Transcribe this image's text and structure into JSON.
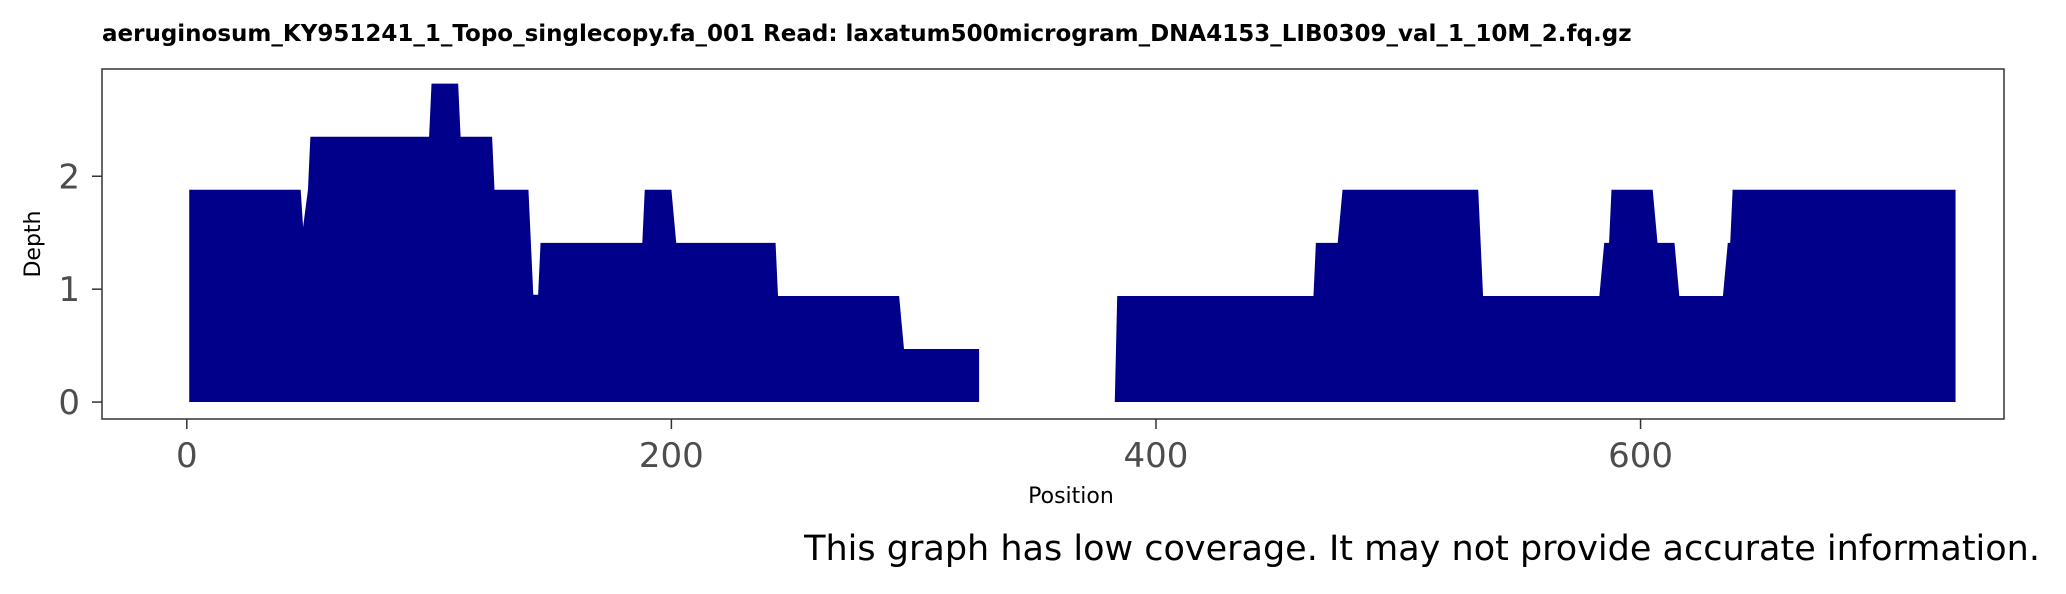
{
  "colors": {
    "fill": "#00008B",
    "panel_border": "#333333",
    "tick_mark": "#333333",
    "tick_label": "#4D4D4D",
    "background": "#FFFFFF"
  },
  "chart_data": {
    "type": "area",
    "title": "aeruginosum_KY951241_1_Topo_singlecopy.fa_001   Read: laxatum500microgram_DNA4153_LIB0309_val_1_10M_2.fq.gz",
    "xlabel": "Position",
    "ylabel": "Depth",
    "xlim": [
      -35,
      750
    ],
    "ylim": [
      -0.15,
      2.95
    ],
    "x_ticks": [
      0,
      200,
      400,
      600
    ],
    "x_tick_labels": [
      "0",
      "200",
      "400",
      "600"
    ],
    "y_ticks": [
      0,
      1,
      2
    ],
    "y_tick_labels": [
      "0",
      "1",
      "2"
    ],
    "grid": false,
    "series": [
      {
        "name": "Depth",
        "points": [
          [
            1,
            0
          ],
          [
            1,
            1.88
          ],
          [
            47,
            1.88
          ],
          [
            48,
            1.55
          ],
          [
            50,
            1.88
          ],
          [
            51,
            2.35
          ],
          [
            100,
            2.35
          ],
          [
            101,
            2.82
          ],
          [
            112,
            2.82
          ],
          [
            113,
            2.35
          ],
          [
            126,
            2.35
          ],
          [
            127,
            1.88
          ],
          [
            141,
            1.88
          ],
          [
            143,
            0.95
          ],
          [
            145,
            0.95
          ],
          [
            146,
            1.41
          ],
          [
            188,
            1.41
          ],
          [
            189,
            1.88
          ],
          [
            200,
            1.88
          ],
          [
            202,
            1.41
          ],
          [
            243,
            1.41
          ],
          [
            244,
            0.94
          ],
          [
            294,
            0.94
          ],
          [
            296,
            0.47
          ],
          [
            327,
            0.47
          ],
          [
            327,
            0
          ]
        ]
      },
      {
        "name": "Depth",
        "points": [
          [
            383,
            0
          ],
          [
            384,
            0.94
          ],
          [
            465,
            0.94
          ],
          [
            466,
            1.41
          ],
          [
            475,
            1.41
          ],
          [
            477,
            1.88
          ],
          [
            533,
            1.88
          ],
          [
            535,
            0.94
          ],
          [
            583,
            0.94
          ],
          [
            585,
            1.41
          ],
          [
            587,
            1.41
          ],
          [
            588,
            1.88
          ],
          [
            605,
            1.88
          ],
          [
            607,
            1.41
          ],
          [
            614,
            1.41
          ],
          [
            616,
            0.94
          ],
          [
            634,
            0.94
          ],
          [
            636,
            1.41
          ],
          [
            637,
            1.41
          ],
          [
            638,
            1.88
          ],
          [
            730,
            1.88
          ],
          [
            730,
            0
          ]
        ]
      }
    ]
  },
  "notice": {
    "text": "This graph has low coverage. It may not provide accurate information."
  }
}
